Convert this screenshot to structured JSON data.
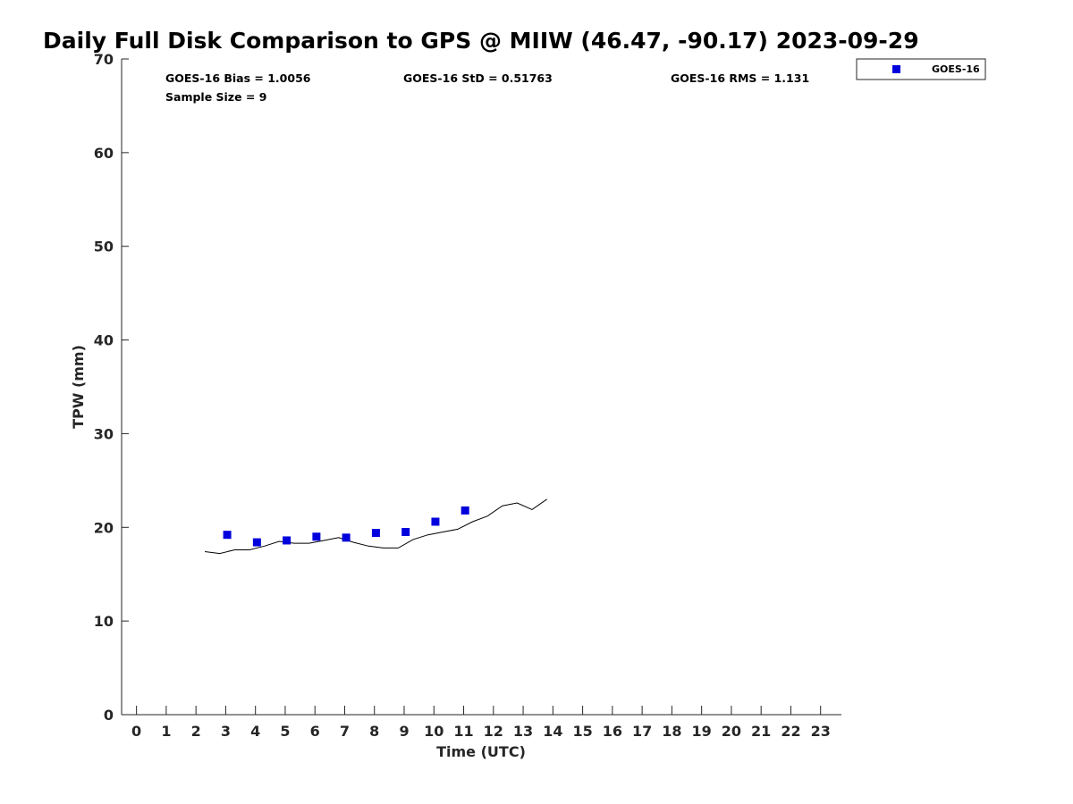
{
  "chart_data": {
    "type": "scatter",
    "title": "Daily Full Disk Comparison to GPS @ MIIW (46.47, -90.17) 2023-09-29",
    "xlabel": "Time (UTC)",
    "ylabel": "TPW (mm)",
    "xlim": [
      -0.5,
      23.7
    ],
    "ylim": [
      0,
      70
    ],
    "x_ticks": [
      0,
      1,
      2,
      3,
      4,
      5,
      6,
      7,
      8,
      9,
      10,
      11,
      12,
      13,
      14,
      15,
      16,
      17,
      18,
      19,
      20,
      21,
      22,
      23
    ],
    "y_ticks": [
      0,
      10,
      20,
      30,
      40,
      50,
      60,
      70
    ],
    "grid": false,
    "legend_position": "top-right",
    "stats": {
      "bias": "GOES-16 Bias = 1.0056",
      "std": "GOES-16 StD = 0.51763",
      "rms": "GOES-16 RMS = 1.131",
      "sample": "Sample Size = 9"
    },
    "series": [
      {
        "name": "GOES-16",
        "kind": "scatter",
        "marker": "square",
        "color": "#0000dd",
        "x": [
          3.05,
          4.05,
          5.05,
          6.05,
          7.05,
          8.05,
          9.05,
          10.05,
          11.05
        ],
        "y": [
          19.2,
          18.4,
          18.6,
          19.0,
          18.9,
          19.4,
          19.5,
          20.6,
          21.8
        ]
      },
      {
        "kind": "line",
        "color": "#000000",
        "x": [
          2.3,
          2.8,
          3.3,
          3.8,
          4.3,
          4.8,
          5.3,
          5.8,
          6.3,
          6.8,
          7.3,
          7.8,
          8.3,
          8.8,
          9.3,
          9.8,
          10.3,
          10.8,
          11.3,
          11.8,
          12.3,
          12.8,
          13.3,
          13.8
        ],
        "y": [
          17.4,
          17.2,
          17.6,
          17.6,
          18.0,
          18.5,
          18.3,
          18.3,
          18.6,
          18.9,
          18.4,
          18.0,
          17.8,
          17.8,
          18.7,
          19.2,
          19.5,
          19.8,
          20.6,
          21.2,
          22.3,
          22.6,
          21.9,
          23.0
        ]
      }
    ]
  }
}
